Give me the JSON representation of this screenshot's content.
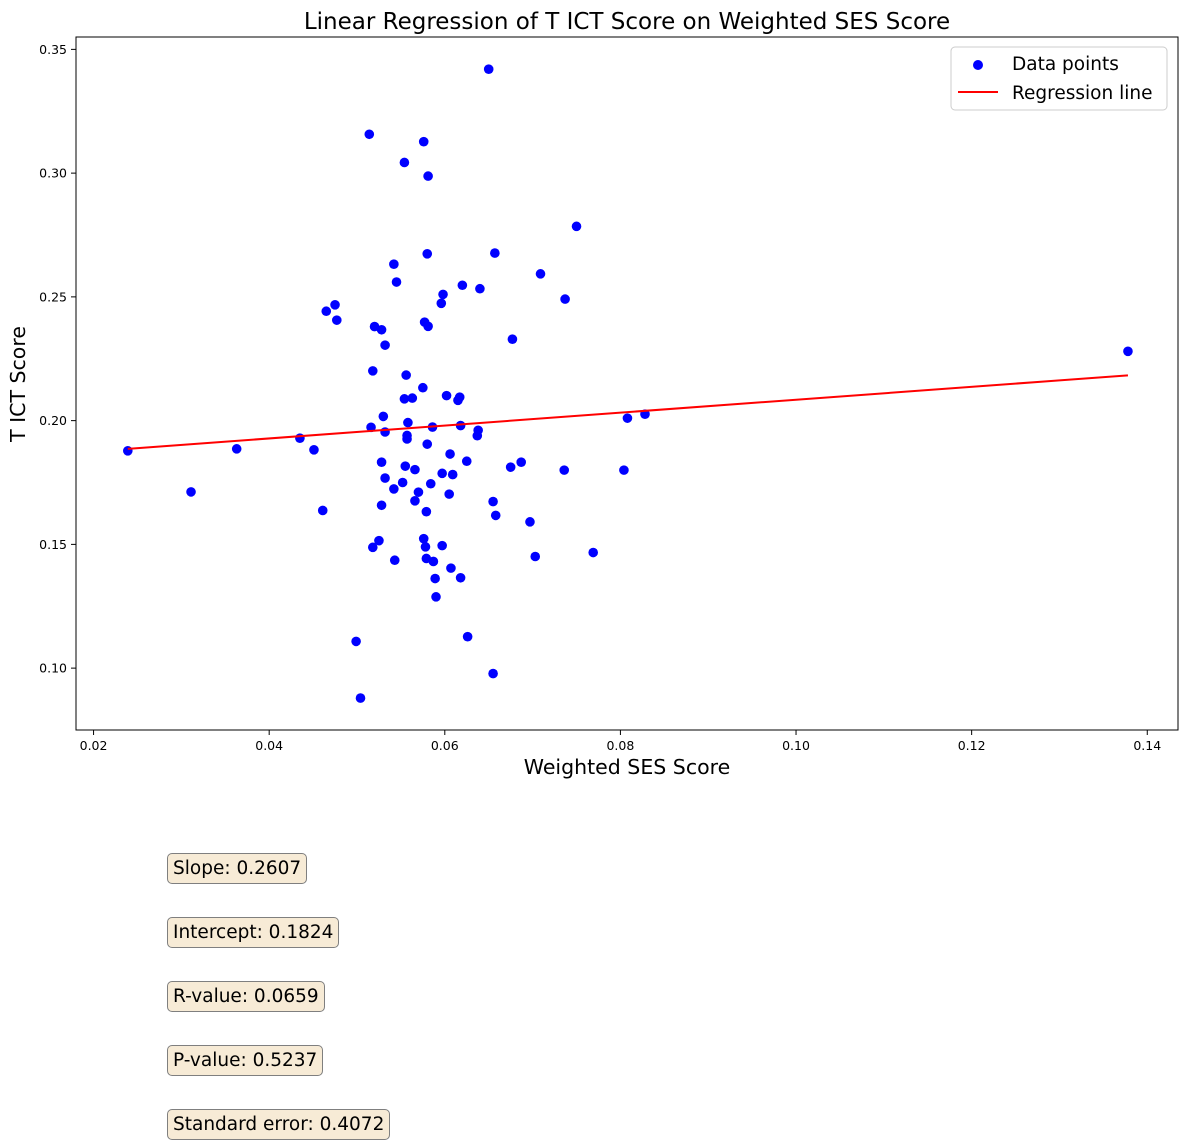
{
  "chart_data": {
    "type": "scatter",
    "title": "Linear Regression of T ICT Score on Weighted SES Score",
    "xlabel": "Weighted SES Score",
    "ylabel": "T ICT Score",
    "xlim": [
      0.018,
      0.1435
    ],
    "ylim": [
      0.075,
      0.355
    ],
    "xticks": [
      0.02,
      0.04,
      0.06,
      0.08,
      0.1,
      0.12,
      0.14
    ],
    "xtick_labels": [
      "0.02",
      "0.04",
      "0.06",
      "0.08",
      "0.10",
      "0.12",
      "0.14"
    ],
    "yticks": [
      0.1,
      0.15,
      0.2,
      0.25,
      0.3,
      0.35
    ],
    "ytick_labels": [
      "0.10",
      "0.15",
      "0.20",
      "0.25",
      "0.30",
      "0.35"
    ],
    "grid": false,
    "legend_position": "top-right",
    "series": [
      {
        "name": "Data points",
        "kind": "scatter",
        "color": "#0000ff",
        "points": [
          [
            0.0239,
            0.1878
          ],
          [
            0.0311,
            0.1712
          ],
          [
            0.0363,
            0.1886
          ],
          [
            0.0435,
            0.1929
          ],
          [
            0.0451,
            0.1882
          ],
          [
            0.0461,
            0.1637
          ],
          [
            0.0465,
            0.2442
          ],
          [
            0.0475,
            0.2468
          ],
          [
            0.0477,
            0.2406
          ],
          [
            0.0499,
            0.1108
          ],
          [
            0.0504,
            0.0879
          ],
          [
            0.0514,
            0.3157
          ],
          [
            0.0516,
            0.1973
          ],
          [
            0.0518,
            0.2201
          ],
          [
            0.0518,
            0.1488
          ],
          [
            0.052,
            0.238
          ],
          [
            0.0525,
            0.1515
          ],
          [
            0.0528,
            0.2367
          ],
          [
            0.0528,
            0.1832
          ],
          [
            0.0528,
            0.1658
          ],
          [
            0.053,
            0.2017
          ],
          [
            0.0532,
            0.2305
          ],
          [
            0.0532,
            0.1954
          ],
          [
            0.0532,
            0.1768
          ],
          [
            0.0542,
            0.2632
          ],
          [
            0.0542,
            0.1724
          ],
          [
            0.0543,
            0.1436
          ],
          [
            0.0545,
            0.256
          ],
          [
            0.0552,
            0.175
          ],
          [
            0.0554,
            0.3043
          ],
          [
            0.0554,
            0.2088
          ],
          [
            0.0555,
            0.1816
          ],
          [
            0.0556,
            0.2184
          ],
          [
            0.0557,
            0.194
          ],
          [
            0.0557,
            0.1926
          ],
          [
            0.0558,
            0.1992
          ],
          [
            0.0563,
            0.2091
          ],
          [
            0.0566,
            0.1802
          ],
          [
            0.0566,
            0.1676
          ],
          [
            0.057,
            0.1711
          ],
          [
            0.0575,
            0.2133
          ],
          [
            0.0576,
            0.3127
          ],
          [
            0.0576,
            0.1523
          ],
          [
            0.0577,
            0.2398
          ],
          [
            0.0578,
            0.149
          ],
          [
            0.0579,
            0.1632
          ],
          [
            0.0579,
            0.1443
          ],
          [
            0.058,
            0.2674
          ],
          [
            0.058,
            0.1905
          ],
          [
            0.0581,
            0.2988
          ],
          [
            0.0581,
            0.2381
          ],
          [
            0.0584,
            0.1745
          ],
          [
            0.0586,
            0.1974
          ],
          [
            0.0587,
            0.1431
          ],
          [
            0.0589,
            0.1362
          ],
          [
            0.059,
            0.1288
          ],
          [
            0.0596,
            0.2474
          ],
          [
            0.0597,
            0.1787
          ],
          [
            0.0597,
            0.1495
          ],
          [
            0.0598,
            0.251
          ],
          [
            0.0602,
            0.2101
          ],
          [
            0.0605,
            0.1703
          ],
          [
            0.0606,
            0.1865
          ],
          [
            0.0607,
            0.1404
          ],
          [
            0.0609,
            0.1782
          ],
          [
            0.0615,
            0.2082
          ],
          [
            0.0617,
            0.2095
          ],
          [
            0.0618,
            0.198
          ],
          [
            0.0618,
            0.1365
          ],
          [
            0.062,
            0.2547
          ],
          [
            0.0625,
            0.1836
          ],
          [
            0.0626,
            0.1127
          ],
          [
            0.0637,
            0.1939
          ],
          [
            0.0638,
            0.1961
          ],
          [
            0.064,
            0.2533
          ],
          [
            0.065,
            0.342
          ],
          [
            0.0655,
            0.1673
          ],
          [
            0.0655,
            0.0978
          ],
          [
            0.0657,
            0.2677
          ],
          [
            0.0658,
            0.1617
          ],
          [
            0.0675,
            0.1812
          ],
          [
            0.0677,
            0.2329
          ],
          [
            0.0687,
            0.1832
          ],
          [
            0.0697,
            0.1591
          ],
          [
            0.0703,
            0.1451
          ],
          [
            0.0709,
            0.2593
          ],
          [
            0.0736,
            0.18
          ],
          [
            0.0737,
            0.2491
          ],
          [
            0.075,
            0.2785
          ],
          [
            0.0769,
            0.1467
          ],
          [
            0.0804,
            0.18
          ],
          [
            0.0808,
            0.201
          ],
          [
            0.0828,
            0.2026
          ],
          [
            0.1378,
            0.228
          ]
        ]
      },
      {
        "name": "Regression line",
        "kind": "line",
        "color": "#ff0000",
        "x": [
          0.0239,
          0.1378
        ],
        "y": [
          0.1886,
          0.2183
        ]
      }
    ]
  },
  "stats": {
    "slope": "Slope: 0.2607",
    "intercept": "Intercept: 0.1824",
    "r_value": "R-value: 0.0659",
    "p_value": "P-value: 0.5237",
    "std_err": "Standard error: 0.4072"
  }
}
